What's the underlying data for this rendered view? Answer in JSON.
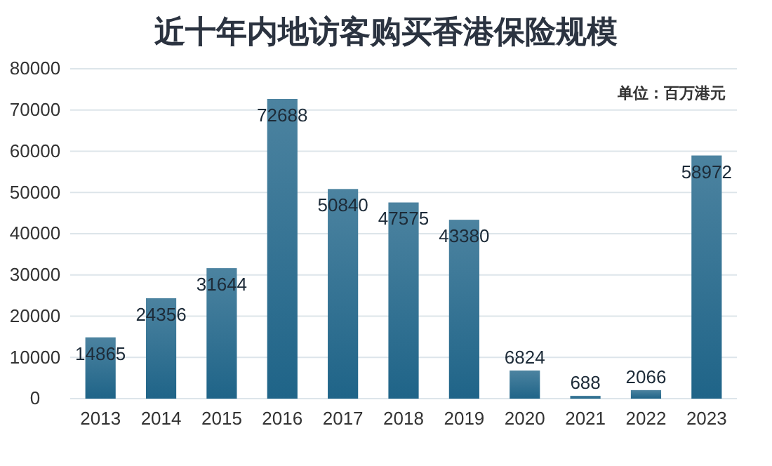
{
  "chart_data": {
    "type": "bar",
    "title": "近十年内地访客购买香港保险规模",
    "annotations": [
      "单位：百万港元"
    ],
    "categories": [
      "2013",
      "2014",
      "2015",
      "2016",
      "2017",
      "2018",
      "2019",
      "2020",
      "2021",
      "2022",
      "2023"
    ],
    "values": [
      14865,
      24356,
      31644,
      72688,
      50840,
      47575,
      43380,
      6824,
      688,
      2066,
      58972
    ],
    "color": "#1f6488",
    "ylim": [
      0,
      80000
    ],
    "yticks": [
      0,
      10000,
      20000,
      30000,
      40000,
      50000,
      60000,
      70000,
      80000
    ],
    "grid": "y",
    "data_labels": true
  }
}
